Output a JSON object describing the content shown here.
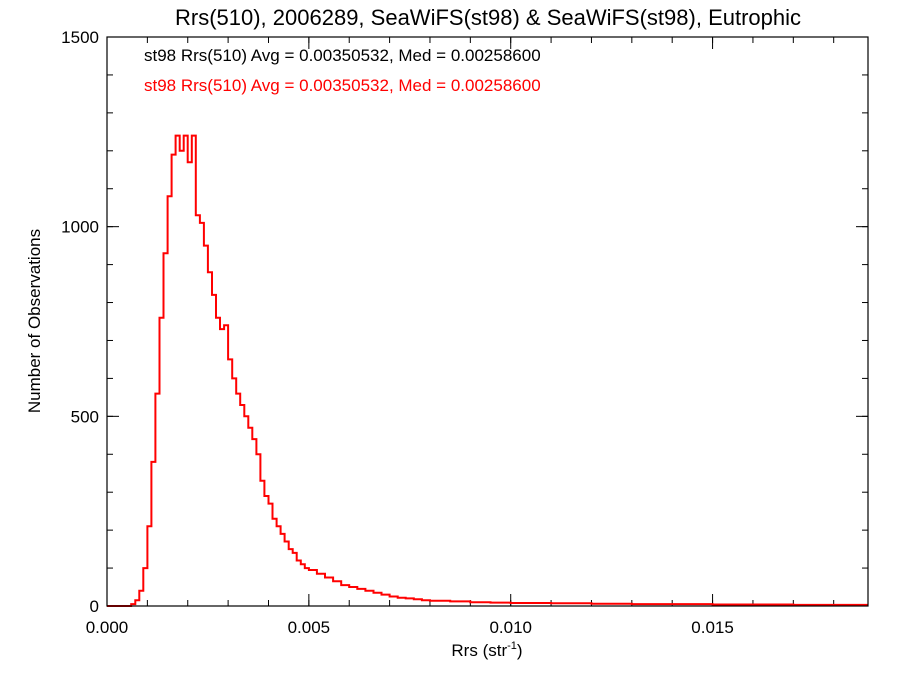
{
  "chart_data": {
    "type": "line",
    "title": "Rrs(510), 2006289, SeaWiFS(st98) & SeaWiFS(st98), Eutrophic",
    "xlabel_main": "Rrs (str",
    "xlabel_sup": "-1",
    "xlabel_tail": ")",
    "ylabel": "Number of Observations",
    "xlim": [
      0.0,
      0.01885
    ],
    "ylim": [
      0,
      1500
    ],
    "xticks": [
      0.0,
      0.005,
      0.01,
      0.015
    ],
    "xtick_labels": [
      "0.000",
      "0.005",
      "0.010",
      "0.015"
    ],
    "yticks": [
      0,
      500,
      1000,
      1500
    ],
    "ytick_labels": [
      "0",
      "500",
      "1000",
      "1500"
    ],
    "legend": [
      {
        "text": "st98 Rrs(510) Avg = 0.00350532, Med = 0.00258600",
        "color": "#000000"
      },
      {
        "text": "st98 Rrs(510) Avg = 0.00350532, Med = 0.00258600",
        "color": "#ff0000"
      }
    ],
    "legend_position": "top-left",
    "series": [
      {
        "style": "step",
        "color": "#ff0000",
        "x": [
          0.0,
          0.0006,
          0.0007,
          0.0008,
          0.0009,
          0.001,
          0.0011,
          0.0012,
          0.0013,
          0.0014,
          0.0015,
          0.0016,
          0.0017,
          0.0018,
          0.0019,
          0.002,
          0.0021,
          0.0022,
          0.0023,
          0.0024,
          0.0025,
          0.0026,
          0.0027,
          0.0028,
          0.0029,
          0.003,
          0.0031,
          0.0032,
          0.0033,
          0.0034,
          0.0035,
          0.0036,
          0.0037,
          0.0038,
          0.0039,
          0.004,
          0.0041,
          0.0042,
          0.0043,
          0.0044,
          0.0045,
          0.0046,
          0.0047,
          0.0048,
          0.0049,
          0.005,
          0.0052,
          0.0054,
          0.0056,
          0.0058,
          0.006,
          0.0062,
          0.0064,
          0.0066,
          0.0068,
          0.007,
          0.0072,
          0.0074,
          0.0076,
          0.0078,
          0.008,
          0.0085,
          0.009,
          0.0095,
          0.01,
          0.011,
          0.012,
          0.013,
          0.014,
          0.015,
          0.016,
          0.017,
          0.018,
          0.01885
        ],
        "y": [
          0,
          5,
          15,
          40,
          100,
          210,
          380,
          560,
          760,
          930,
          1080,
          1190,
          1240,
          1200,
          1240,
          1170,
          1240,
          1030,
          1010,
          950,
          880,
          820,
          760,
          730,
          740,
          650,
          600,
          560,
          530,
          500,
          470,
          440,
          400,
          330,
          290,
          270,
          230,
          210,
          190,
          170,
          150,
          140,
          120,
          110,
          100,
          95,
          85,
          75,
          65,
          55,
          50,
          45,
          40,
          35,
          30,
          25,
          22,
          20,
          18,
          15,
          14,
          12,
          10,
          9,
          8,
          7,
          6,
          5,
          5,
          4,
          4,
          3,
          3,
          3
        ]
      }
    ]
  }
}
